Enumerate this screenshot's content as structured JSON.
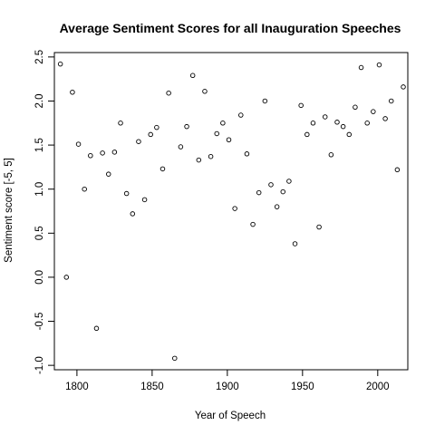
{
  "chart_data": {
    "type": "scatter",
    "title": "Average Sentiment Scores for all Inauguration Speeches",
    "xlabel": "Year of Speech",
    "ylabel": "Sentiment score [-5, 5]",
    "xlim": [
      1785,
      2020
    ],
    "ylim": [
      -1.05,
      2.55
    ],
    "x_ticks": [
      1800,
      1850,
      1900,
      1950,
      2000
    ],
    "y_ticks": [
      -1.0,
      -0.5,
      0.0,
      0.5,
      1.0,
      1.5,
      2.0,
      2.5
    ],
    "x_tick_labels": [
      "1800",
      "1850",
      "1900",
      "1950",
      "2000"
    ],
    "y_tick_labels": [
      "-1.0",
      "-0.5",
      "0.0",
      "0.5",
      "1.0",
      "1.5",
      "2.0",
      "2.5"
    ],
    "grid": false,
    "points": [
      {
        "x": 1789,
        "y": 2.42
      },
      {
        "x": 1793,
        "y": 0.0
      },
      {
        "x": 1797,
        "y": 2.1
      },
      {
        "x": 1801,
        "y": 1.51
      },
      {
        "x": 1805,
        "y": 1.0
      },
      {
        "x": 1809,
        "y": 1.38
      },
      {
        "x": 1813,
        "y": -0.58
      },
      {
        "x": 1817,
        "y": 1.41
      },
      {
        "x": 1821,
        "y": 1.17
      },
      {
        "x": 1825,
        "y": 1.42
      },
      {
        "x": 1829,
        "y": 1.75
      },
      {
        "x": 1833,
        "y": 0.95
      },
      {
        "x": 1837,
        "y": 0.72
      },
      {
        "x": 1841,
        "y": 1.54
      },
      {
        "x": 1845,
        "y": 0.88
      },
      {
        "x": 1849,
        "y": 1.62
      },
      {
        "x": 1853,
        "y": 1.7
      },
      {
        "x": 1857,
        "y": 1.23
      },
      {
        "x": 1861,
        "y": 2.09
      },
      {
        "x": 1865,
        "y": -0.92
      },
      {
        "x": 1869,
        "y": 1.48
      },
      {
        "x": 1873,
        "y": 1.71
      },
      {
        "x": 1877,
        "y": 2.29
      },
      {
        "x": 1881,
        "y": 1.33
      },
      {
        "x": 1885,
        "y": 2.11
      },
      {
        "x": 1889,
        "y": 1.37
      },
      {
        "x": 1893,
        "y": 1.63
      },
      {
        "x": 1897,
        "y": 1.75
      },
      {
        "x": 1901,
        "y": 1.56
      },
      {
        "x": 1905,
        "y": 0.78
      },
      {
        "x": 1909,
        "y": 1.84
      },
      {
        "x": 1913,
        "y": 1.4
      },
      {
        "x": 1917,
        "y": 0.6
      },
      {
        "x": 1921,
        "y": 0.96
      },
      {
        "x": 1925,
        "y": 2.0
      },
      {
        "x": 1929,
        "y": 1.05
      },
      {
        "x": 1933,
        "y": 0.8
      },
      {
        "x": 1937,
        "y": 0.97
      },
      {
        "x": 1941,
        "y": 1.09
      },
      {
        "x": 1945,
        "y": 0.38
      },
      {
        "x": 1949,
        "y": 1.95
      },
      {
        "x": 1953,
        "y": 1.62
      },
      {
        "x": 1957,
        "y": 1.75
      },
      {
        "x": 1961,
        "y": 0.57
      },
      {
        "x": 1965,
        "y": 1.82
      },
      {
        "x": 1969,
        "y": 1.39
      },
      {
        "x": 1973,
        "y": 1.76
      },
      {
        "x": 1977,
        "y": 1.71
      },
      {
        "x": 1981,
        "y": 1.62
      },
      {
        "x": 1985,
        "y": 1.93
      },
      {
        "x": 1989,
        "y": 2.38
      },
      {
        "x": 1993,
        "y": 1.75
      },
      {
        "x": 1997,
        "y": 1.88
      },
      {
        "x": 2001,
        "y": 2.41
      },
      {
        "x": 2005,
        "y": 1.8
      },
      {
        "x": 2009,
        "y": 2.0
      },
      {
        "x": 2013,
        "y": 1.22
      },
      {
        "x": 2017,
        "y": 2.16
      }
    ]
  }
}
